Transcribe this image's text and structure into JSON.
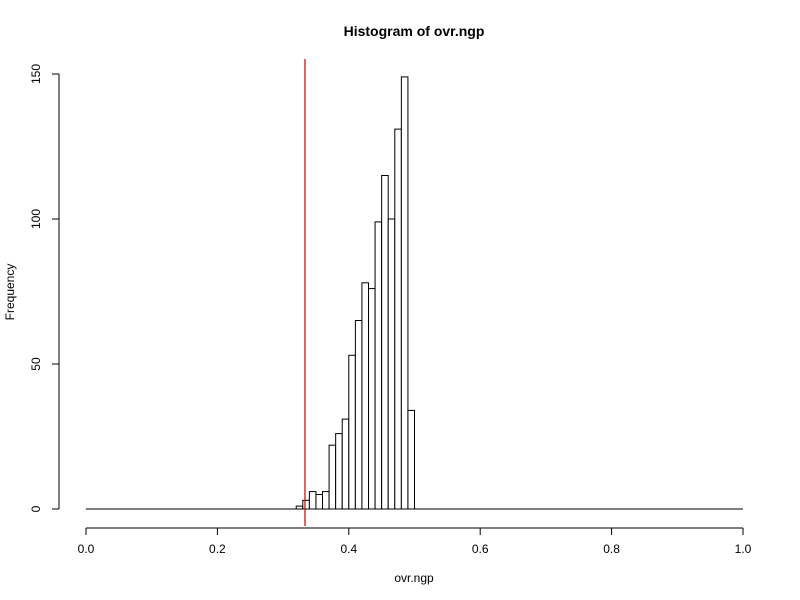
{
  "chart_data": {
    "type": "bar",
    "title": "Histogram of ovr.ngp",
    "xlabel": "ovr.ngp",
    "ylabel": "Frequency",
    "xlim": [
      0,
      1
    ],
    "ylim": [
      0,
      150
    ],
    "x_ticks": [
      "0.0",
      "0.2",
      "0.4",
      "0.6",
      "0.8",
      "1.0"
    ],
    "y_ticks": [
      "0",
      "50",
      "100",
      "150"
    ],
    "bin_width": 0.01,
    "bins": [
      {
        "x0": 0.32,
        "x1": 0.33,
        "count": 1
      },
      {
        "x0": 0.33,
        "x1": 0.34,
        "count": 3
      },
      {
        "x0": 0.34,
        "x1": 0.35,
        "count": 6
      },
      {
        "x0": 0.35,
        "x1": 0.36,
        "count": 5
      },
      {
        "x0": 0.36,
        "x1": 0.37,
        "count": 6
      },
      {
        "x0": 0.37,
        "x1": 0.38,
        "count": 22
      },
      {
        "x0": 0.38,
        "x1": 0.39,
        "count": 26
      },
      {
        "x0": 0.39,
        "x1": 0.4,
        "count": 31
      },
      {
        "x0": 0.4,
        "x1": 0.41,
        "count": 53
      },
      {
        "x0": 0.41,
        "x1": 0.42,
        "count": 65
      },
      {
        "x0": 0.42,
        "x1": 0.43,
        "count": 78
      },
      {
        "x0": 0.43,
        "x1": 0.44,
        "count": 76
      },
      {
        "x0": 0.44,
        "x1": 0.45,
        "count": 99
      },
      {
        "x0": 0.45,
        "x1": 0.46,
        "count": 115
      },
      {
        "x0": 0.46,
        "x1": 0.47,
        "count": 100
      },
      {
        "x0": 0.47,
        "x1": 0.48,
        "count": 131
      },
      {
        "x0": 0.48,
        "x1": 0.49,
        "count": 149
      },
      {
        "x0": 0.49,
        "x1": 0.5,
        "count": 34
      }
    ],
    "baseline_range": [
      0,
      1
    ],
    "reference_line": {
      "x": 0.3333,
      "color": "#cc0000"
    }
  }
}
